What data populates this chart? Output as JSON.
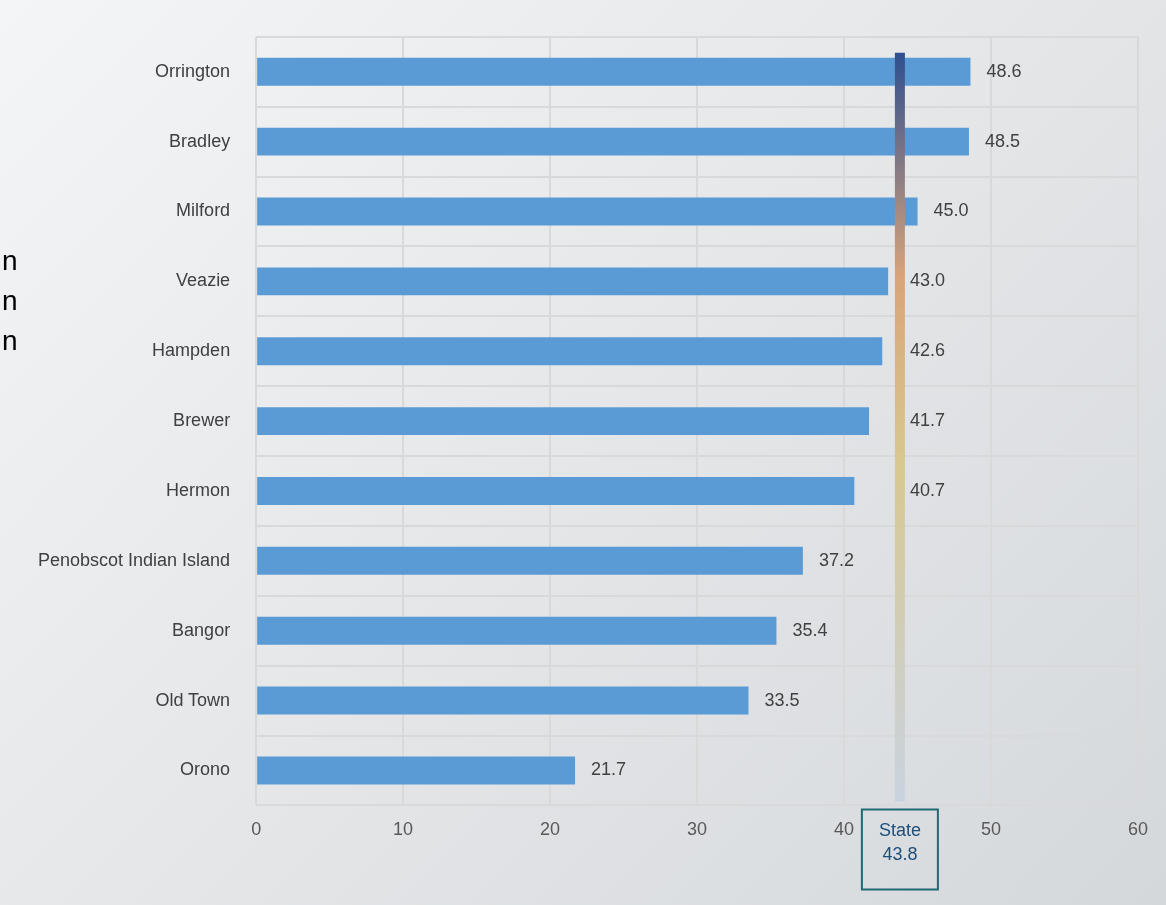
{
  "chart_data": {
    "type": "bar",
    "orientation": "horizontal",
    "categories": [
      "Orrington",
      "Bradley",
      "Milford",
      "Veazie",
      "Hampden",
      "Brewer",
      "Hermon",
      "Penobscot Indian Island",
      "Bangor",
      "Old Town",
      "Orono"
    ],
    "series": [
      {
        "color": "#5b9bd5",
        "values": [
          48.6,
          48.5,
          45.0,
          43.0,
          42.6,
          41.7,
          40.7,
          37.2,
          35.4,
          33.5,
          21.7
        ],
        "value_labels": [
          "48.6",
          "48.5",
          "45.0",
          "43.0",
          "42.6",
          "41.7",
          "40.7",
          "37.2",
          "35.4",
          "33.5",
          "21.7"
        ]
      }
    ],
    "xlim": [
      0,
      60
    ],
    "xticks": [
      0,
      10,
      20,
      30,
      40,
      50,
      60
    ],
    "grid": true,
    "legend": false,
    "ref_lines": [
      {
        "axis": "x",
        "value": 43.8,
        "label": "State 43.8",
        "color": "#2f4f8f"
      }
    ],
    "annotations": [
      "n",
      "n",
      "n"
    ]
  }
}
